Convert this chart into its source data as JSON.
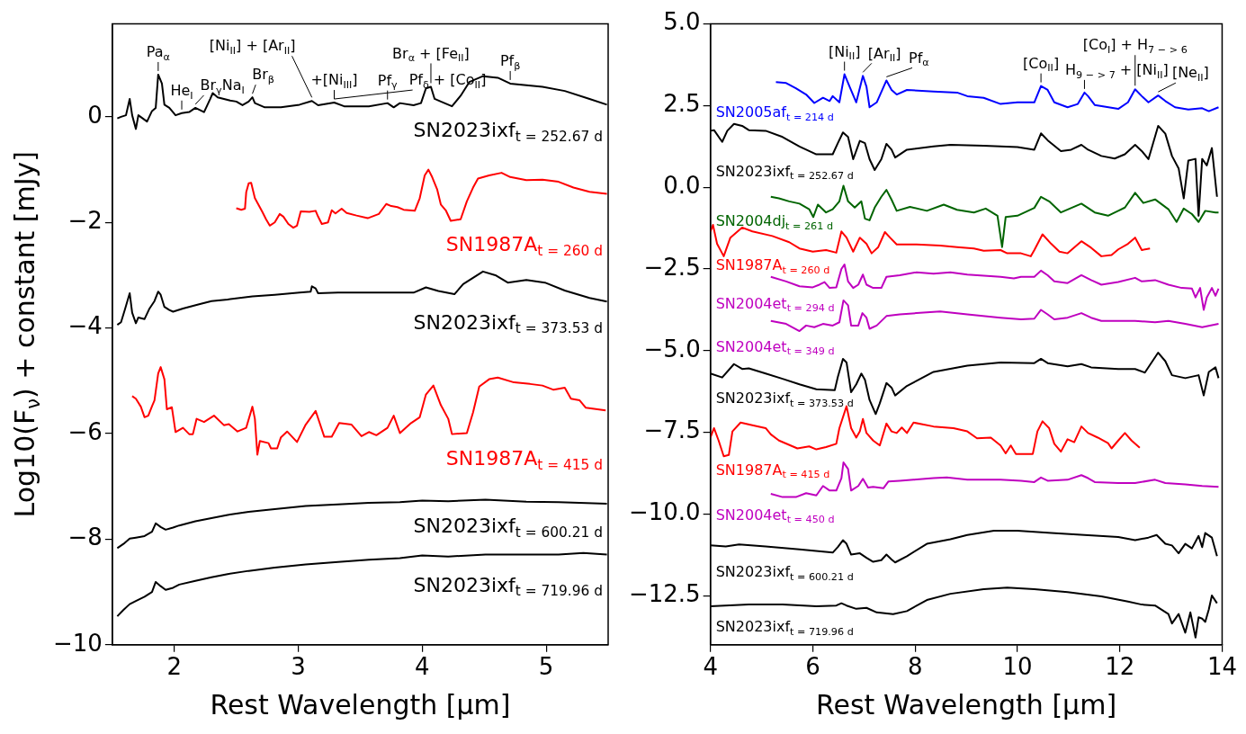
{
  "chart_data": [
    {
      "type": "line",
      "xlabel": "Rest Wavelength [μm]",
      "ylabel": "Log10(F$_{ν}$) + constant [mJy]",
      "xlim": [
        1.5,
        5.5
      ],
      "ylim": [
        -10,
        1.76
      ],
      "xticks": [
        2,
        3,
        4,
        5
      ],
      "yticks": [
        {
          "value": -10,
          "label": "−10"
        },
        {
          "value": -8,
          "label": "−8"
        },
        {
          "value": -6,
          "label": "−6"
        },
        {
          "value": -4,
          "label": "−4"
        },
        {
          "value": -2,
          "label": "−2"
        },
        0
      ],
      "annotations": [
        {
          "text": "Pa$_{α}$",
          "x": 1.87,
          "y": 0.8
        },
        {
          "text": "He$_{I}$",
          "x": 2.06,
          "y": 0.07
        },
        {
          "text": "Br$_{γ}$Na$_{I}$",
          "x": 2.17,
          "y": 0.17
        },
        {
          "text": "Br$_{β}$",
          "x": 2.63,
          "y": 0.37
        },
        {
          "text": "Pf$_{γ}$",
          "x": 3.72,
          "y": 0.26
        },
        {
          "text": "+[Ni$_{III}$]",
          "x": 3.29,
          "y": 0.27
        },
        {
          "text": "Pf$_{δ}$ + [Co$_{II}$]",
          "x": 3.29,
          "y": 0.27
        },
        {
          "text": "[Ni$_{II}$] + [Ar$_{II}$]",
          "x": 3.11,
          "y": 0.3
        },
        {
          "text": "Br$_{α}$ + [Fe$_{II}$]",
          "x": 4.07,
          "y": 0.57
        },
        {
          "text": "Pf$_{β}$",
          "x": 4.71,
          "y": 0.63
        }
      ],
      "series": [
        {
          "name": "SN2023ixf$_{t = 252.67 d}$",
          "color": "#000000",
          "x": [
            1.54,
            1.57,
            1.61,
            1.64,
            1.66,
            1.69,
            1.71,
            1.78,
            1.82,
            1.85,
            1.87,
            1.9,
            1.92,
            1.96,
            2.01,
            2.06,
            2.12,
            2.17,
            2.24,
            2.29,
            2.31,
            2.35,
            2.45,
            2.5,
            2.55,
            2.6,
            2.63,
            2.65,
            2.73,
            2.86,
            3.01,
            3.11,
            3.16,
            3.29,
            3.37,
            3.57,
            3.72,
            3.77,
            3.82,
            3.93,
            3.99,
            4.03,
            4.07,
            4.1,
            4.15,
            4.24,
            4.31,
            4.38,
            4.49,
            4.61,
            4.71,
            4.84,
            4.97,
            5.15,
            5.35,
            5.49
          ],
          "values": [
            -0.03,
            0.0,
            0.03,
            0.34,
            0.03,
            -0.23,
            0.03,
            -0.09,
            0.11,
            0.17,
            0.8,
            0.63,
            0.23,
            0.17,
            0.03,
            0.07,
            0.09,
            0.17,
            0.09,
            0.34,
            0.45,
            0.37,
            0.31,
            0.29,
            0.22,
            0.29,
            0.37,
            0.26,
            0.18,
            0.18,
            0.23,
            0.3,
            0.22,
            0.27,
            0.2,
            0.2,
            0.26,
            0.18,
            0.26,
            0.22,
            0.26,
            0.54,
            0.57,
            0.34,
            0.29,
            0.2,
            0.4,
            0.66,
            0.77,
            0.74,
            0.63,
            0.6,
            0.57,
            0.49,
            0.34,
            0.23
          ]
        },
        {
          "name": "SN1987A$_{t = 260 d}$",
          "color": "#ff0000",
          "x": [
            2.5,
            2.54,
            2.57,
            2.58,
            2.6,
            2.62,
            2.65,
            2.71,
            2.74,
            2.77,
            2.81,
            2.85,
            2.88,
            2.92,
            2.96,
            2.99,
            3.02,
            3.09,
            3.14,
            3.16,
            3.19,
            3.24,
            3.27,
            3.3,
            3.35,
            3.39,
            3.47,
            3.56,
            3.65,
            3.71,
            3.75,
            3.8,
            3.85,
            3.94,
            3.98,
            4.02,
            4.05,
            4.08,
            4.12,
            4.15,
            4.19,
            4.23,
            4.31,
            4.36,
            4.41,
            4.45,
            4.54,
            4.64,
            4.71,
            4.84,
            4.97,
            5.1,
            5.22,
            5.35,
            5.49
          ],
          "values": [
            -1.73,
            -1.76,
            -1.74,
            -1.43,
            -1.26,
            -1.25,
            -1.54,
            -1.8,
            -1.94,
            -2.06,
            -2.0,
            -1.84,
            -1.89,
            -2.03,
            -2.1,
            -2.06,
            -1.79,
            -1.8,
            -1.78,
            -1.89,
            -2.03,
            -2.0,
            -1.77,
            -1.83,
            -1.74,
            -1.82,
            -1.87,
            -1.92,
            -1.84,
            -1.65,
            -1.69,
            -1.71,
            -1.76,
            -1.78,
            -1.54,
            -1.11,
            -1.0,
            -1.14,
            -1.37,
            -1.66,
            -1.77,
            -1.97,
            -1.94,
            -1.6,
            -1.34,
            -1.17,
            -1.11,
            -1.06,
            -1.14,
            -1.2,
            -1.19,
            -1.23,
            -1.34,
            -1.42,
            -1.46
          ]
        },
        {
          "name": "SN2023ixf$_{t = 373.53 d}$",
          "color": "#000000",
          "x": [
            1.54,
            1.57,
            1.6,
            1.64,
            1.66,
            1.69,
            1.71,
            1.76,
            1.8,
            1.84,
            1.87,
            1.89,
            1.92,
            1.96,
            1.99,
            2.07,
            2.2,
            2.3,
            2.43,
            2.63,
            2.81,
            3.01,
            3.1,
            3.11,
            3.14,
            3.16,
            3.32,
            3.57,
            3.77,
            3.93,
            4.03,
            4.13,
            4.26,
            4.33,
            4.49,
            4.59,
            4.69,
            4.84,
            4.99,
            5.15,
            5.35,
            5.49
          ],
          "values": [
            -3.94,
            -3.89,
            -3.66,
            -3.34,
            -3.71,
            -3.91,
            -3.8,
            -3.83,
            -3.63,
            -3.49,
            -3.31,
            -3.37,
            -3.6,
            -3.66,
            -3.69,
            -3.63,
            -3.55,
            -3.49,
            -3.46,
            -3.4,
            -3.37,
            -3.33,
            -3.31,
            -3.21,
            -3.25,
            -3.34,
            -3.33,
            -3.33,
            -3.33,
            -3.33,
            -3.23,
            -3.3,
            -3.36,
            -3.17,
            -2.93,
            -3.0,
            -3.14,
            -3.09,
            -3.14,
            -3.29,
            -3.43,
            -3.5
          ]
        },
        {
          "name": "SN1987A$_{t = 415 d}$",
          "color": "#ff0000",
          "x": [
            1.66,
            1.69,
            1.73,
            1.76,
            1.79,
            1.82,
            1.84,
            1.87,
            1.89,
            1.92,
            1.94,
            1.98,
            2.01,
            2.07,
            2.12,
            2.15,
            2.18,
            2.24,
            2.32,
            2.4,
            2.44,
            2.51,
            2.58,
            2.63,
            2.65,
            2.67,
            2.69,
            2.76,
            2.78,
            2.83,
            2.86,
            2.91,
            2.99,
            3.06,
            3.14,
            3.21,
            3.27,
            3.33,
            3.43,
            3.51,
            3.57,
            3.63,
            3.72,
            3.77,
            3.82,
            3.91,
            3.98,
            4.03,
            4.09,
            4.15,
            4.21,
            4.24,
            4.36,
            4.41,
            4.46,
            4.54,
            4.61,
            4.74,
            4.87,
            4.97,
            5.06,
            5.15,
            5.2,
            5.27,
            5.32,
            5.48
          ],
          "values": [
            -5.29,
            -5.34,
            -5.49,
            -5.69,
            -5.66,
            -5.48,
            -5.37,
            -4.86,
            -4.74,
            -4.97,
            -5.54,
            -5.5,
            -5.97,
            -5.89,
            -6.01,
            -6.01,
            -5.72,
            -5.78,
            -5.66,
            -5.84,
            -5.82,
            -5.96,
            -5.89,
            -5.49,
            -5.72,
            -6.4,
            -6.14,
            -6.18,
            -6.28,
            -6.28,
            -6.07,
            -5.96,
            -6.16,
            -5.83,
            -5.57,
            -6.06,
            -6.06,
            -5.8,
            -5.83,
            -6.05,
            -5.97,
            -6.03,
            -5.89,
            -5.66,
            -5.99,
            -5.8,
            -5.69,
            -5.26,
            -5.09,
            -5.46,
            -5.72,
            -6.01,
            -5.99,
            -5.6,
            -5.11,
            -4.97,
            -4.94,
            -5.03,
            -5.06,
            -5.09,
            -5.17,
            -5.13,
            -5.34,
            -5.37,
            -5.51,
            -5.56
          ]
        },
        {
          "name": "SN2023ixf$_{t = 600.21 d}$",
          "color": "#000000",
          "x": [
            1.54,
            1.59,
            1.64,
            1.69,
            1.76,
            1.82,
            1.85,
            1.89,
            1.93,
            1.99,
            2.04,
            2.17,
            2.3,
            2.43,
            2.6,
            2.81,
            3.06,
            3.32,
            3.57,
            3.82,
            4.0,
            4.21,
            4.51,
            4.84,
            5.1,
            5.49
          ],
          "values": [
            -8.17,
            -8.09,
            -7.99,
            -7.97,
            -7.94,
            -7.86,
            -7.7,
            -7.77,
            -7.82,
            -7.78,
            -7.74,
            -7.66,
            -7.6,
            -7.54,
            -7.48,
            -7.43,
            -7.37,
            -7.34,
            -7.31,
            -7.3,
            -7.27,
            -7.28,
            -7.25,
            -7.29,
            -7.3,
            -7.33
          ]
        },
        {
          "name": "SN2023ixf$_{t = 719.96 d}$",
          "color": "#000000",
          "x": [
            1.54,
            1.59,
            1.64,
            1.69,
            1.76,
            1.82,
            1.85,
            1.89,
            1.93,
            1.99,
            2.04,
            2.17,
            2.3,
            2.43,
            2.6,
            2.81,
            3.06,
            3.32,
            3.57,
            3.82,
            4.0,
            4.21,
            4.51,
            4.84,
            5.1,
            5.3,
            5.49
          ],
          "values": [
            -9.46,
            -9.34,
            -9.23,
            -9.17,
            -9.09,
            -9.0,
            -8.81,
            -8.89,
            -8.96,
            -8.92,
            -8.86,
            -8.79,
            -8.72,
            -8.66,
            -8.6,
            -8.54,
            -8.48,
            -8.43,
            -8.39,
            -8.36,
            -8.31,
            -8.33,
            -8.29,
            -8.29,
            -8.29,
            -8.26,
            -8.29
          ]
        }
      ]
    },
    {
      "type": "line",
      "xlabel": "Rest Wavelength [μm]",
      "xlim": [
        4,
        14
      ],
      "ylim": [
        -14,
        5
      ],
      "xticks": [
        4,
        6,
        8,
        10,
        12,
        14
      ],
      "yticks": [
        {
          "value": -12.5,
          "label": "−12.5"
        },
        {
          "value": -10,
          "label": "−10.0"
        },
        {
          "value": -7.5,
          "label": "−7.5"
        },
        {
          "value": -5,
          "label": "−5.0"
        },
        {
          "value": -2.5,
          "label": "−2.5"
        },
        {
          "value": 0,
          "label": "0.0"
        },
        2.5,
        {
          "value": 5,
          "label": "5.0"
        }
      ],
      "annotations": [
        {
          "text": "[Ni$_{II}$]",
          "x": 6.62,
          "y": 3.46
        },
        {
          "text": "[Ar$_{II}$]",
          "x": 6.98,
          "y": 3.41
        },
        {
          "text": "Pf$_{α}$",
          "x": 7.44,
          "y": 3.27
        },
        {
          "text": "[Co$_{II}$]",
          "x": 10.46,
          "y": 3.1
        },
        {
          "text": "H$_{9 − > 7}$ + [Ni$_{II}$]",
          "x": 11.31,
          "y": 2.9
        },
        {
          "text": "[Ne$_{II}$]",
          "x": 12.75,
          "y": 2.81
        },
        {
          "text": "[Co$_{I}$] + H$_{7 − > 6}$",
          "x": 12.3,
          "y": 3.0
        }
      ],
      "series": [
        {
          "name": "SN2005af$_{t = 214 d}$",
          "color": "#0000ff",
          "x": [
            5.28,
            5.48,
            5.67,
            5.87,
            6.03,
            6.2,
            6.33,
            6.39,
            6.52,
            6.62,
            6.72,
            6.85,
            6.98,
            7.05,
            7.11,
            7.25,
            7.44,
            7.54,
            7.64,
            7.84,
            8.36,
            8.82,
            9.02,
            9.34,
            9.67,
            10.0,
            10.33,
            10.46,
            10.59,
            10.72,
            10.98,
            11.18,
            11.31,
            11.38,
            11.51,
            11.97,
            12.16,
            12.3,
            12.43,
            12.56,
            12.75,
            12.89,
            13.08,
            13.34,
            13.61,
            13.74,
            13.93
          ],
          "values": [
            3.22,
            3.19,
            3.03,
            2.84,
            2.58,
            2.74,
            2.64,
            2.79,
            2.6,
            3.46,
            3.08,
            2.6,
            3.41,
            3.08,
            2.45,
            2.6,
            3.27,
            2.98,
            2.84,
            2.98,
            2.93,
            2.9,
            2.79,
            2.74,
            2.55,
            2.6,
            2.6,
            3.1,
            2.98,
            2.6,
            2.45,
            2.55,
            2.9,
            2.79,
            2.52,
            2.4,
            2.6,
            3.0,
            2.79,
            2.6,
            2.81,
            2.64,
            2.45,
            2.38,
            2.42,
            2.33,
            2.45
          ]
        },
        {
          "name": "SN2023ixf$_{t = 252.67 d}$",
          "color": "#000000",
          "x": [
            4.0,
            4.07,
            4.23,
            4.33,
            4.46,
            4.62,
            4.75,
            5.08,
            5.41,
            5.74,
            6.07,
            6.39,
            6.49,
            6.59,
            6.69,
            6.79,
            6.92,
            7.02,
            7.11,
            7.21,
            7.34,
            7.44,
            7.54,
            7.61,
            7.84,
            8.36,
            8.69,
            9.34,
            10.0,
            10.33,
            10.46,
            10.59,
            10.85,
            11.05,
            11.25,
            11.38,
            11.64,
            11.9,
            12.1,
            12.3,
            12.43,
            12.56,
            12.75,
            12.89,
            13.02,
            13.15,
            13.25,
            13.34,
            13.48,
            13.54,
            13.61,
            13.7,
            13.8,
            13.9
          ],
          "values": [
            1.73,
            1.75,
            1.39,
            1.73,
            1.94,
            1.88,
            1.75,
            1.73,
            1.54,
            1.25,
            1.01,
            1.01,
            1.35,
            1.68,
            1.54,
            0.86,
            1.42,
            1.35,
            0.86,
            0.53,
            0.86,
            1.33,
            1.15,
            0.91,
            1.15,
            1.25,
            1.3,
            1.27,
            1.23,
            1.15,
            1.65,
            1.44,
            1.11,
            1.15,
            1.3,
            1.15,
            0.96,
            0.88,
            1.01,
            1.3,
            1.11,
            0.86,
            1.88,
            1.64,
            0.96,
            0.58,
            -0.34,
            0.82,
            0.87,
            -0.87,
            0.87,
            0.67,
            1.2,
            -0.29
          ]
        },
        {
          "name": "SN2004dj$_{t = 261 d}$",
          "color": "#006400",
          "x": [
            5.18,
            5.34,
            5.54,
            5.74,
            5.93,
            6.01,
            6.1,
            6.26,
            6.39,
            6.52,
            6.6,
            6.69,
            6.82,
            6.95,
            7.02,
            7.11,
            7.21,
            7.34,
            7.44,
            7.54,
            7.64,
            7.9,
            8.23,
            8.56,
            8.82,
            9.15,
            9.38,
            9.61,
            9.7,
            9.77,
            10.0,
            10.33,
            10.46,
            10.62,
            10.85,
            11.25,
            11.51,
            11.77,
            11.97,
            12.1,
            12.3,
            12.46,
            12.69,
            12.95,
            13.11,
            13.25,
            13.41,
            13.54,
            13.67,
            13.87,
            13.93
          ],
          "values": [
            -0.29,
            -0.34,
            -0.43,
            -0.5,
            -0.67,
            -0.91,
            -0.53,
            -0.77,
            -0.67,
            -0.43,
            0.05,
            -0.43,
            -0.62,
            -0.43,
            -0.96,
            -1.01,
            -0.62,
            -0.29,
            -0.08,
            -0.38,
            -0.72,
            -0.6,
            -0.72,
            -0.53,
            -0.69,
            -0.77,
            -0.65,
            -0.87,
            -1.83,
            -0.91,
            -0.87,
            -0.63,
            -0.29,
            -0.43,
            -0.77,
            -0.5,
            -0.77,
            -0.87,
            -0.72,
            -0.62,
            -0.17,
            -0.48,
            -0.37,
            -0.67,
            -1.06,
            -0.65,
            -0.82,
            -1.06,
            -0.72,
            -0.77,
            -0.77
          ]
        },
        {
          "name": "SN1987A$_{t = 260 d}$",
          "color": "#ff0000",
          "x": [
            4.0,
            4.05,
            4.13,
            4.26,
            4.39,
            4.62,
            4.82,
            5.21,
            5.54,
            5.74,
            6.0,
            6.26,
            6.46,
            6.56,
            6.66,
            6.79,
            6.92,
            7.05,
            7.15,
            7.28,
            7.41,
            7.51,
            7.64,
            8.03,
            8.49,
            8.82,
            9.15,
            9.34,
            9.67,
            9.8,
            10.07,
            10.26,
            10.33,
            10.49,
            10.66,
            10.82,
            10.98,
            11.25,
            11.44,
            11.64,
            11.84,
            11.97,
            12.16,
            12.3,
            12.43,
            12.59
          ],
          "values": [
            -1.35,
            -1.15,
            -1.73,
            -2.11,
            -1.54,
            -1.23,
            -1.35,
            -1.49,
            -1.68,
            -1.87,
            -1.97,
            -1.92,
            -2.0,
            -1.35,
            -1.54,
            -1.97,
            -1.54,
            -1.73,
            -2.02,
            -1.83,
            -1.37,
            -1.54,
            -1.75,
            -1.75,
            -1.78,
            -1.83,
            -1.87,
            -1.94,
            -1.92,
            -2.02,
            -2.02,
            -2.11,
            -1.92,
            -1.44,
            -1.73,
            -1.97,
            -2.02,
            -1.65,
            -1.85,
            -2.11,
            -2.07,
            -1.9,
            -1.73,
            -1.54,
            -1.92,
            -1.87
          ]
        },
        {
          "name": "SN2004et$_{t = 294 d}$",
          "color": "#bf00bf",
          "x": [
            5.18,
            5.48,
            5.74,
            6.0,
            6.13,
            6.23,
            6.33,
            6.46,
            6.56,
            6.62,
            6.69,
            6.79,
            6.89,
            6.98,
            7.05,
            7.18,
            7.34,
            7.44,
            7.7,
            8.03,
            8.36,
            8.69,
            9.02,
            9.67,
            9.93,
            10.07,
            10.33,
            10.46,
            10.59,
            10.72,
            10.98,
            11.25,
            11.44,
            11.64,
            11.97,
            12.3,
            12.43,
            12.69,
            12.95,
            13.21,
            13.41,
            13.48,
            13.57,
            13.64,
            13.7,
            13.8,
            13.87,
            13.93
          ],
          "values": [
            -2.74,
            -2.88,
            -3.03,
            -3.06,
            -2.98,
            -2.9,
            -3.08,
            -3.06,
            -2.5,
            -2.36,
            -2.88,
            -3.08,
            -2.98,
            -2.67,
            -2.98,
            -3.08,
            -3.08,
            -2.74,
            -2.69,
            -2.6,
            -2.64,
            -2.6,
            -2.67,
            -2.74,
            -2.79,
            -2.74,
            -2.74,
            -2.55,
            -2.69,
            -2.88,
            -2.93,
            -2.69,
            -2.84,
            -2.98,
            -2.9,
            -2.77,
            -2.88,
            -2.84,
            -2.98,
            -3.08,
            -3.1,
            -3.37,
            -3.08,
            -3.75,
            -3.37,
            -3.08,
            -3.32,
            -3.1
          ]
        },
        {
          "name": "SN2004et$_{t = 349 d}$",
          "color": "#bf00bf",
          "x": [
            5.18,
            5.48,
            5.74,
            5.87,
            6.03,
            6.2,
            6.39,
            6.52,
            6.6,
            6.69,
            6.75,
            6.89,
            6.97,
            7.05,
            7.11,
            7.25,
            7.44,
            7.7,
            8.03,
            8.49,
            9.02,
            9.67,
            10.07,
            10.33,
            10.46,
            10.59,
            10.72,
            10.98,
            11.25,
            11.44,
            11.64,
            12.3,
            12.69,
            12.95,
            13.28,
            13.61,
            13.93
          ],
          "values": [
            -4.09,
            -4.18,
            -4.4,
            -4.23,
            -4.28,
            -4.18,
            -4.23,
            -4.13,
            -3.46,
            -3.61,
            -4.23,
            -4.23,
            -3.85,
            -3.99,
            -4.33,
            -4.23,
            -3.94,
            -3.89,
            -3.85,
            -3.8,
            -3.89,
            -3.99,
            -4.04,
            -4.02,
            -3.75,
            -3.89,
            -4.04,
            -3.99,
            -3.85,
            -3.99,
            -4.09,
            -4.09,
            -4.13,
            -4.09,
            -4.18,
            -4.28,
            -4.18
          ]
        },
        {
          "name": "SN2023ixf$_{t = 373.53 d}$",
          "color": "#000000",
          "x": [
            4.0,
            4.23,
            4.46,
            4.62,
            4.75,
            5.08,
            5.41,
            5.74,
            6.07,
            6.43,
            6.49,
            6.59,
            6.66,
            6.75,
            6.85,
            6.95,
            7.02,
            7.11,
            7.23,
            7.31,
            7.44,
            7.54,
            7.61,
            7.84,
            8.36,
            9.02,
            9.67,
            10.33,
            10.46,
            10.59,
            10.98,
            11.25,
            11.44,
            11.97,
            12.3,
            12.49,
            12.75,
            12.89,
            13.02,
            13.28,
            13.54,
            13.64,
            13.74,
            13.87,
            13.93
          ],
          "values": [
            -5.7,
            -5.82,
            -5.41,
            -5.56,
            -5.54,
            -5.7,
            -5.86,
            -6.03,
            -6.18,
            -6.21,
            -5.8,
            -5.25,
            -5.36,
            -6.27,
            -6.03,
            -5.7,
            -5.89,
            -6.51,
            -6.94,
            -6.61,
            -5.99,
            -6.13,
            -6.37,
            -6.08,
            -5.65,
            -5.46,
            -5.36,
            -5.38,
            -5.25,
            -5.38,
            -5.48,
            -5.41,
            -5.51,
            -5.56,
            -5.56,
            -5.67,
            -5.06,
            -5.32,
            -5.75,
            -5.84,
            -5.75,
            -6.37,
            -5.65,
            -5.51,
            -5.84
          ]
        },
        {
          "name": "SN1987A$_{t = 415 d}$",
          "color": "#ff0000",
          "x": [
            4.0,
            4.07,
            4.16,
            4.26,
            4.36,
            4.43,
            4.59,
            4.82,
            5.08,
            5.18,
            5.34,
            5.7,
            5.93,
            6.07,
            6.26,
            6.46,
            6.52,
            6.66,
            6.75,
            6.85,
            6.92,
            6.98,
            7.05,
            7.18,
            7.31,
            7.44,
            7.54,
            7.64,
            7.74,
            7.84,
            7.97,
            8.36,
            8.75,
            9.02,
            9.21,
            9.48,
            9.67,
            9.77,
            9.87,
            9.97,
            10.3,
            10.39,
            10.49,
            10.62,
            10.72,
            10.85,
            10.98,
            11.11,
            11.25,
            11.38,
            11.57,
            11.77,
            11.84,
            11.97,
            12.1,
            12.23,
            12.39
          ],
          "values": [
            -7.66,
            -7.37,
            -7.75,
            -8.23,
            -8.19,
            -7.47,
            -7.2,
            -7.28,
            -7.37,
            -7.56,
            -7.75,
            -7.99,
            -7.93,
            -8.02,
            -7.95,
            -7.85,
            -7.37,
            -6.7,
            -7.37,
            -7.66,
            -7.47,
            -7.09,
            -7.52,
            -7.75,
            -7.9,
            -7.23,
            -7.47,
            -7.52,
            -7.35,
            -7.52,
            -7.2,
            -7.32,
            -7.37,
            -7.47,
            -7.68,
            -7.66,
            -7.9,
            -8.14,
            -7.9,
            -8.16,
            -8.16,
            -7.47,
            -7.16,
            -7.37,
            -7.85,
            -8.09,
            -7.71,
            -7.8,
            -7.32,
            -7.52,
            -7.66,
            -7.83,
            -7.99,
            -7.75,
            -7.52,
            -7.75,
            -7.97
          ]
        },
        {
          "name": "SN2004et$_{t = 450 d}$",
          "color": "#bf00bf",
          "x": [
            5.18,
            5.41,
            5.67,
            5.87,
            6.07,
            6.2,
            6.33,
            6.46,
            6.56,
            6.6,
            6.69,
            6.75,
            6.89,
            6.98,
            7.08,
            7.18,
            7.38,
            7.48,
            7.7,
            7.97,
            8.36,
            8.62,
            9.02,
            9.67,
            10.07,
            10.33,
            10.46,
            10.59,
            10.98,
            11.25,
            11.38,
            11.51,
            11.97,
            12.3,
            12.69,
            12.89,
            13.28,
            13.61,
            13.93
          ],
          "values": [
            -9.38,
            -9.48,
            -9.48,
            -9.36,
            -9.43,
            -9.14,
            -9.28,
            -9.28,
            -8.9,
            -8.42,
            -8.62,
            -9.28,
            -9.14,
            -8.92,
            -9.19,
            -9.17,
            -9.21,
            -9.0,
            -8.98,
            -8.95,
            -8.9,
            -8.88,
            -8.95,
            -8.95,
            -8.98,
            -9.02,
            -8.88,
            -8.98,
            -8.95,
            -8.81,
            -8.9,
            -9.02,
            -9.05,
            -9.05,
            -8.95,
            -9.05,
            -9.09,
            -9.14,
            -9.17
          ]
        },
        {
          "name": "SN2023ixf$_{t = 600.21 d}$",
          "color": "#000000",
          "x": [
            4.0,
            4.3,
            4.56,
            5.08,
            5.74,
            6.39,
            6.49,
            6.59,
            6.66,
            6.75,
            6.92,
            7.05,
            7.18,
            7.34,
            7.44,
            7.54,
            7.61,
            7.84,
            8.23,
            8.69,
            9.02,
            9.54,
            10.0,
            10.66,
            11.31,
            11.97,
            12.3,
            12.56,
            12.72,
            12.89,
            13.02,
            13.15,
            13.28,
            13.41,
            13.54,
            13.61,
            13.67,
            13.8,
            13.9
          ],
          "values": [
            -10.96,
            -10.99,
            -10.93,
            -10.99,
            -11.08,
            -11.18,
            -11.01,
            -10.8,
            -10.91,
            -11.24,
            -11.2,
            -11.34,
            -11.46,
            -11.41,
            -11.24,
            -11.39,
            -11.48,
            -11.29,
            -10.91,
            -10.77,
            -10.64,
            -10.51,
            -10.51,
            -10.58,
            -10.64,
            -10.7,
            -10.8,
            -10.72,
            -10.64,
            -10.91,
            -10.96,
            -11.2,
            -10.91,
            -11.05,
            -10.67,
            -11.01,
            -10.58,
            -10.72,
            -11.29
          ]
        },
        {
          "name": "SN2023ixf$_{t = 719.96 d}$",
          "color": "#000000",
          "x": [
            4.0,
            4.75,
            5.41,
            6.07,
            6.46,
            6.56,
            6.66,
            6.85,
            7.05,
            7.25,
            7.57,
            7.84,
            8.23,
            8.69,
            9.34,
            9.8,
            10.33,
            10.98,
            11.64,
            12.16,
            12.43,
            12.69,
            12.95,
            13.02,
            13.15,
            13.28,
            13.38,
            13.48,
            13.54,
            13.61,
            13.67,
            13.74,
            13.8,
            13.9
          ],
          "values": [
            -12.82,
            -12.77,
            -12.77,
            -12.82,
            -12.8,
            -12.73,
            -12.8,
            -12.9,
            -12.87,
            -13.01,
            -13.06,
            -12.97,
            -12.63,
            -12.44,
            -12.3,
            -12.25,
            -12.3,
            -12.39,
            -12.52,
            -12.68,
            -12.77,
            -12.8,
            -13.06,
            -13.35,
            -13.06,
            -13.63,
            -13.01,
            -13.78,
            -13.16,
            -13.2,
            -13.3,
            -12.92,
            -12.49,
            -12.73
          ]
        }
      ]
    }
  ]
}
